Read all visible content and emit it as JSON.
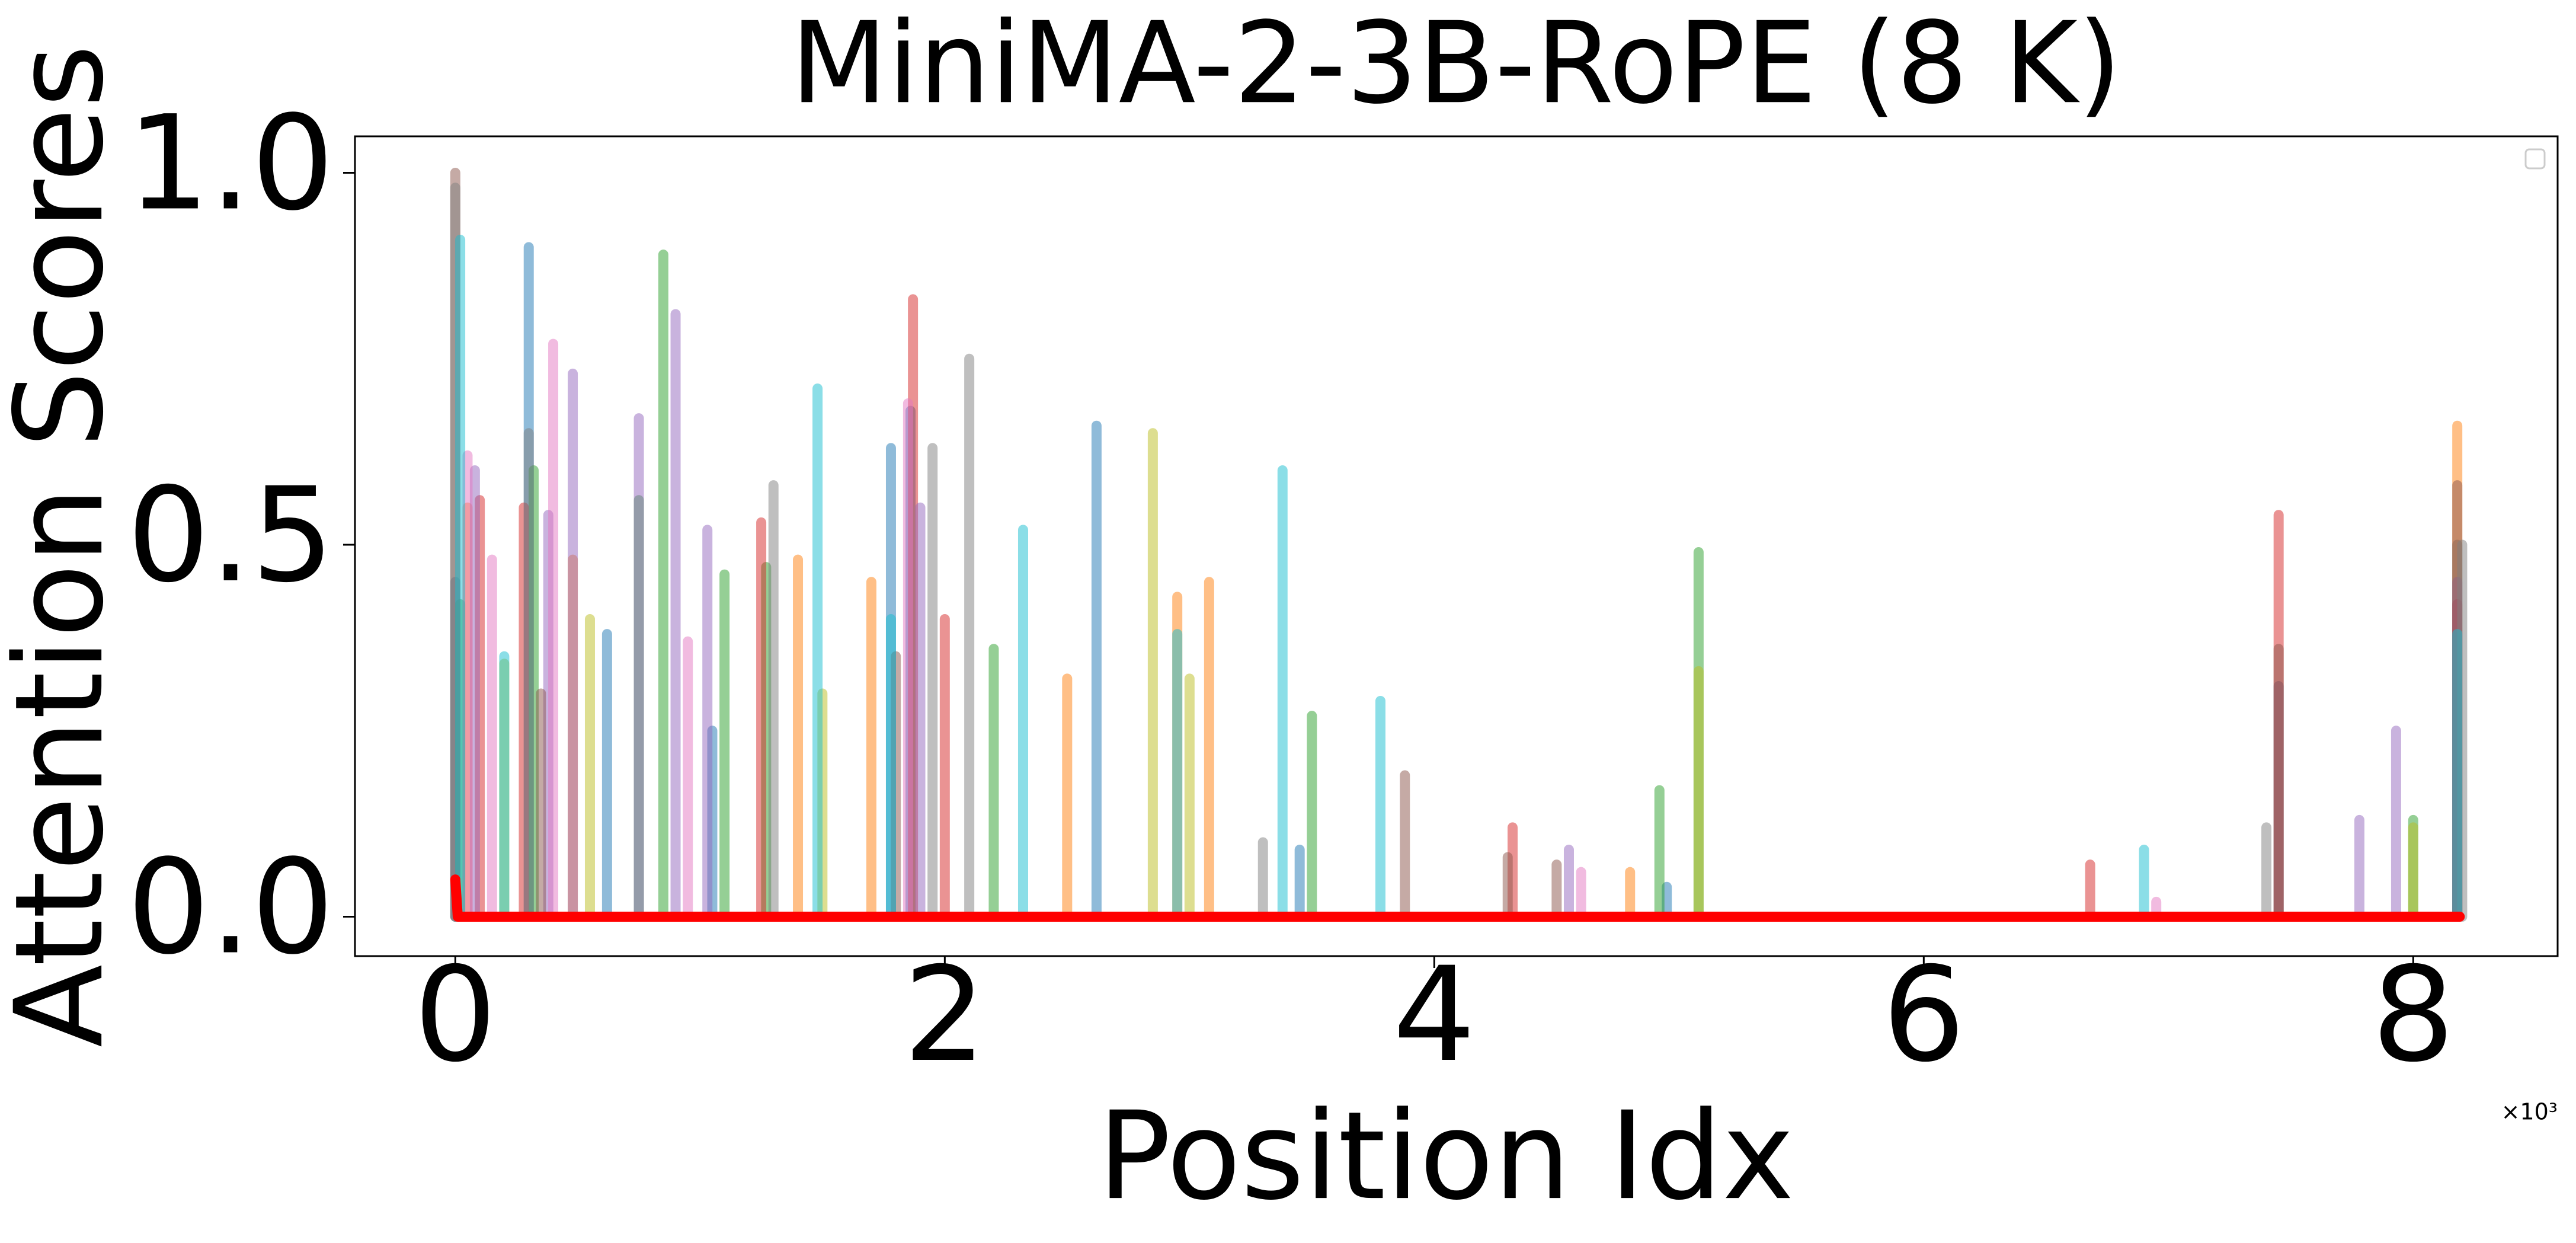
{
  "chart_data": {
    "type": "stem",
    "title": "MiniMA-2-3B-RoPE (8 K)",
    "x_label": "Position Idx",
    "y_label": "Attention Scores",
    "x_offset_label": "×10³",
    "xlim": [
      -0.41,
      8.59
    ],
    "ylim": [
      -0.053,
      1.049
    ],
    "xticks": [
      0,
      2,
      4,
      6,
      8
    ],
    "yticks": [
      {
        "value": 0,
        "label": "0.0"
      },
      {
        "value": 0.5,
        "label": "0.5"
      },
      {
        "value": 1,
        "label": "1.0"
      }
    ],
    "legend": "upper right",
    "series": [
      {
        "color": "#1f77b4",
        "x": [
          0.0,
          0.3,
          0.62,
          1.05,
          1.78,
          1.86,
          2.62,
          3.45,
          4.95,
          7.45,
          8.18
        ],
        "values": [
          0.45,
          0.9,
          0.38,
          0.25,
          0.63,
          0.68,
          0.66,
          0.09,
          0.04,
          0.31,
          0.5
        ]
      },
      {
        "color": "#ff7f0e",
        "x": [
          0.05,
          0.48,
          1.4,
          1.7,
          2.5,
          2.95,
          3.08,
          4.8,
          8.18
        ],
        "values": [
          0.55,
          0.48,
          0.48,
          0.45,
          0.32,
          0.43,
          0.45,
          0.06,
          0.66
        ]
      },
      {
        "color": "#2ca02c",
        "x": [
          0.02,
          0.32,
          0.75,
          0.85,
          1.1,
          1.27,
          2.2,
          3.5,
          4.92,
          5.08,
          8.0
        ],
        "values": [
          0.42,
          0.6,
          0.56,
          0.89,
          0.46,
          0.47,
          0.36,
          0.27,
          0.17,
          0.49,
          0.13
        ]
      },
      {
        "color": "#d62728",
        "x": [
          0.1,
          0.28,
          1.25,
          1.87,
          2.0,
          4.32,
          6.68,
          7.45,
          8.18
        ],
        "values": [
          0.56,
          0.55,
          0.53,
          0.83,
          0.4,
          0.12,
          0.07,
          0.54,
          0.42
        ]
      },
      {
        "color": "#9467bd",
        "x": [
          0.08,
          0.38,
          0.48,
          0.75,
          0.9,
          1.03,
          1.9,
          4.55,
          7.78,
          7.93,
          8.18
        ],
        "values": [
          0.6,
          0.54,
          0.73,
          0.67,
          0.81,
          0.52,
          0.55,
          0.09,
          0.13,
          0.25,
          0.45
        ]
      },
      {
        "color": "#8c564b",
        "x": [
          0.0,
          0.35,
          1.8,
          3.88,
          4.3,
          4.5,
          7.45,
          8.18
        ],
        "values": [
          1.0,
          0.3,
          0.35,
          0.19,
          0.08,
          0.07,
          0.36,
          0.58
        ]
      },
      {
        "color": "#e377c2",
        "x": [
          0.05,
          0.15,
          0.4,
          0.95,
          1.85,
          4.6,
          6.95
        ],
        "values": [
          0.62,
          0.48,
          0.77,
          0.37,
          0.69,
          0.06,
          0.02
        ]
      },
      {
        "color": "#7f7f7f",
        "x": [
          0.0,
          0.3,
          1.3,
          1.95,
          2.1,
          3.3,
          7.4,
          8.2
        ],
        "values": [
          0.98,
          0.65,
          0.58,
          0.63,
          0.75,
          0.1,
          0.12,
          0.5
        ]
      },
      {
        "color": "#bcbd22",
        "x": [
          0.2,
          0.55,
          1.5,
          2.85,
          3.0,
          5.08,
          8.0
        ],
        "values": [
          0.34,
          0.4,
          0.3,
          0.65,
          0.32,
          0.33,
          0.12
        ]
      },
      {
        "color": "#17becf",
        "x": [
          0.02,
          0.2,
          1.48,
          1.78,
          2.32,
          2.95,
          3.38,
          3.78,
          6.9,
          8.18
        ],
        "values": [
          0.91,
          0.35,
          0.71,
          0.4,
          0.52,
          0.38,
          0.6,
          0.29,
          0.09,
          0.38
        ]
      },
      {
        "type": "line",
        "color": "#ff0000",
        "x": [
          0.0,
          0.01,
          8.19
        ],
        "values": [
          0.05,
          0,
          0
        ]
      }
    ]
  }
}
